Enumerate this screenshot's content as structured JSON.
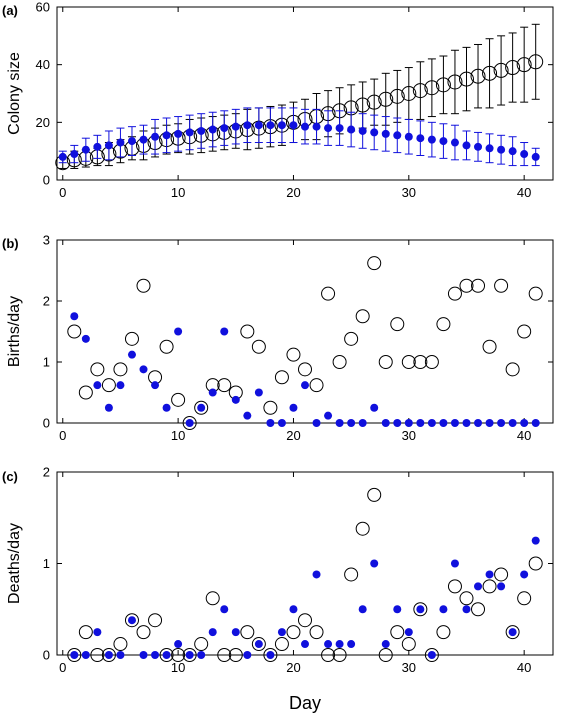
{
  "chart_data": [
    {
      "type": "scatter",
      "panel_label": "(a)",
      "xlabel": "",
      "ylabel": "Colony size",
      "xlim": [
        -0.5,
        42.5
      ],
      "ylim": [
        0,
        60
      ],
      "xticks": [
        0,
        10,
        20,
        30,
        40
      ],
      "yticks": [
        0,
        20,
        40,
        60
      ],
      "grid": false,
      "series": [
        {
          "marker": "open-circle-large",
          "color": "#000000",
          "x": [
            0,
            1,
            2,
            3,
            4,
            5,
            6,
            7,
            8,
            9,
            10,
            11,
            12,
            13,
            14,
            15,
            16,
            17,
            18,
            19,
            20,
            21,
            22,
            23,
            24,
            25,
            26,
            27,
            28,
            29,
            30,
            31,
            32,
            33,
            34,
            35,
            36,
            37,
            38,
            39,
            40,
            41
          ],
          "y": [
            6,
            7,
            7.5,
            8,
            9,
            10,
            11,
            12,
            13,
            14,
            14.5,
            15,
            15.5,
            16,
            16.5,
            17,
            17.5,
            18,
            18.5,
            19,
            20,
            21,
            22,
            23,
            24,
            25,
            26,
            27,
            28,
            29,
            30,
            31,
            32,
            33,
            34,
            35,
            36,
            37,
            38,
            39,
            40,
            41
          ],
          "err": [
            2,
            3,
            3,
            3,
            4,
            4,
            4,
            5,
            5,
            5,
            5,
            6,
            6,
            6,
            6,
            6,
            7,
            7,
            7,
            7,
            7,
            7,
            8,
            8,
            8,
            8,
            8,
            8,
            9,
            9,
            9,
            10,
            10,
            10,
            11,
            11,
            11,
            12,
            12,
            12,
            13,
            13
          ]
        },
        {
          "marker": "filled-dot",
          "color": "#1010dd",
          "x": [
            0,
            1,
            2,
            3,
            4,
            5,
            6,
            7,
            8,
            9,
            10,
            11,
            12,
            13,
            14,
            15,
            16,
            17,
            18,
            19,
            20,
            21,
            22,
            23,
            24,
            25,
            26,
            27,
            28,
            29,
            30,
            31,
            32,
            33,
            34,
            35,
            36,
            37,
            38,
            39,
            40,
            41
          ],
          "y": [
            8,
            9,
            10.5,
            11.5,
            12,
            13,
            13.5,
            14,
            15,
            15.5,
            16,
            16.5,
            17,
            17.5,
            18,
            18.5,
            19,
            19,
            19,
            19,
            19,
            18.5,
            18.5,
            18,
            18,
            17.5,
            17,
            16.5,
            16,
            15.5,
            15,
            14.5,
            14,
            13.5,
            13,
            12,
            11.5,
            11,
            10.5,
            10,
            9,
            8
          ],
          "err": [
            2,
            3,
            4,
            4,
            5,
            5,
            5,
            5,
            6,
            6,
            6,
            6,
            6,
            6,
            6,
            6,
            6,
            6,
            6,
            6,
            6,
            6,
            6,
            6,
            6,
            6,
            6,
            6,
            6,
            6,
            6,
            6,
            6,
            6,
            6,
            5,
            5,
            5,
            5,
            5,
            4,
            3
          ]
        }
      ]
    },
    {
      "type": "scatter",
      "panel_label": "(b)",
      "xlabel": "",
      "ylabel": "Births/day",
      "xlim": [
        -0.5,
        42.5
      ],
      "ylim": [
        0,
        3
      ],
      "xticks": [
        0,
        10,
        20,
        30,
        40
      ],
      "yticks": [
        0,
        1,
        2,
        3
      ],
      "grid": false,
      "series": [
        {
          "marker": "open-circle",
          "color": "#000000",
          "x": [
            1,
            2,
            3,
            4,
            5,
            6,
            7,
            8,
            9,
            10,
            11,
            12,
            13,
            14,
            15,
            16,
            17,
            18,
            19,
            20,
            21,
            22,
            23,
            24,
            25,
            26,
            27,
            28,
            29,
            30,
            31,
            32,
            33,
            34,
            35,
            36,
            37,
            38,
            39,
            40,
            41
          ],
          "y": [
            1.5,
            0.5,
            0.88,
            0.62,
            0.88,
            1.38,
            2.25,
            0.75,
            1.25,
            0.38,
            0,
            0.25,
            0.62,
            0.62,
            0.5,
            1.5,
            1.25,
            0.25,
            0.75,
            1.12,
            0.88,
            0.62,
            2.12,
            1,
            1.38,
            1.75,
            2.62,
            1,
            1.62,
            1,
            1,
            1,
            1.62,
            2.12,
            2.25,
            2.25,
            1.25,
            2.25,
            0.88,
            1.5,
            2.12
          ]
        },
        {
          "marker": "filled-dot",
          "color": "#1010dd",
          "x": [
            1,
            2,
            3,
            4,
            5,
            6,
            7,
            8,
            9,
            10,
            11,
            12,
            13,
            14,
            15,
            16,
            17,
            18,
            19,
            20,
            21,
            22,
            23,
            24,
            25,
            26,
            27,
            28,
            29,
            30,
            31,
            32,
            33,
            34,
            35,
            36,
            37,
            38,
            39,
            40,
            41
          ],
          "y": [
            1.75,
            1.38,
            0.62,
            0.25,
            0.62,
            1.12,
            0.88,
            0.62,
            0.25,
            1.5,
            0,
            0.25,
            0.5,
            1.5,
            0.38,
            0.12,
            0.5,
            0,
            0,
            0.25,
            0.62,
            0,
            0.12,
            0,
            0,
            0,
            0.25,
            0,
            0,
            0,
            0,
            0,
            0,
            0,
            0,
            0,
            0,
            0,
            0,
            0,
            0
          ]
        }
      ]
    },
    {
      "type": "scatter",
      "panel_label": "(c)",
      "xlabel": "Day",
      "ylabel": "Deaths/day",
      "xlim": [
        -0.5,
        42.5
      ],
      "ylim": [
        0,
        2
      ],
      "xticks": [
        0,
        10,
        20,
        30,
        40
      ],
      "yticks": [
        0,
        1,
        2
      ],
      "grid": false,
      "series": [
        {
          "marker": "open-circle",
          "color": "#000000",
          "x": [
            1,
            2,
            3,
            4,
            5,
            6,
            7,
            8,
            9,
            10,
            11,
            12,
            13,
            14,
            15,
            16,
            17,
            18,
            19,
            20,
            21,
            22,
            23,
            24,
            25,
            26,
            27,
            28,
            29,
            30,
            31,
            32,
            33,
            34,
            35,
            36,
            37,
            38,
            39,
            40,
            41
          ],
          "y": [
            0,
            0.25,
            0,
            0,
            0.12,
            0.38,
            0.25,
            0.38,
            0,
            0,
            0,
            0.12,
            0.62,
            0,
            0,
            0.25,
            0.12,
            0,
            0.12,
            0.25,
            0.38,
            0.25,
            0,
            0,
            0.88,
            1.38,
            1.75,
            0,
            0.25,
            0.12,
            0.5,
            0,
            0.25,
            0.75,
            0.62,
            0.5,
            0.75,
            0.88,
            0.25,
            0.62,
            1
          ]
        },
        {
          "marker": "filled-dot",
          "color": "#1010dd",
          "x": [
            1,
            2,
            3,
            4,
            5,
            6,
            7,
            8,
            9,
            10,
            11,
            12,
            13,
            14,
            15,
            16,
            17,
            18,
            19,
            20,
            21,
            22,
            23,
            24,
            25,
            26,
            27,
            28,
            29,
            30,
            31,
            32,
            33,
            34,
            35,
            36,
            37,
            38,
            39,
            40,
            41
          ],
          "y": [
            0,
            0,
            0.25,
            0,
            0,
            0.38,
            0,
            0,
            0,
            0.12,
            0,
            0,
            0.25,
            0.5,
            0.25,
            0,
            0.12,
            0,
            0.25,
            0.5,
            0.12,
            0.88,
            0.12,
            0.12,
            0.12,
            0.5,
            1,
            0.12,
            0.5,
            0.25,
            0.5,
            0,
            0.5,
            1,
            0.5,
            0.75,
            0.88,
            0.75,
            0.25,
            0.88,
            1.25
          ]
        }
      ]
    }
  ]
}
